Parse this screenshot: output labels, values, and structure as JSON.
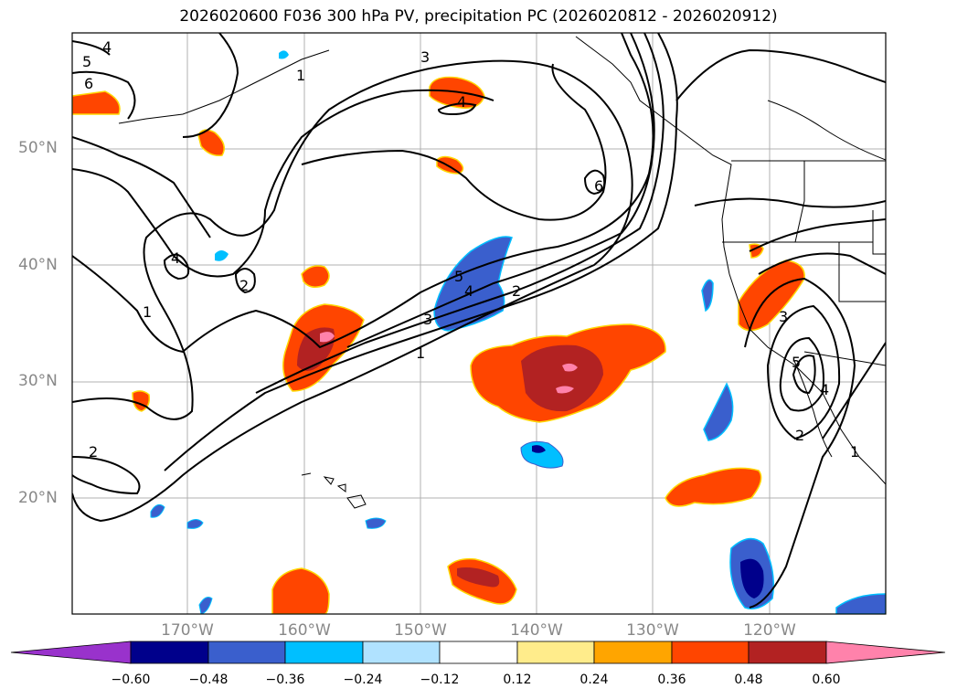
{
  "title": "2026020600 F036 300 hPa PV, precipitation PC (2026020812 - 2026020912)",
  "lat_labels": [
    "50°N",
    "40°N",
    "30°N",
    "20°N"
  ],
  "lon_labels": [
    "170°W",
    "160°W",
    "150°W",
    "140°W",
    "130°W",
    "120°W"
  ],
  "colorbar": {
    "ticks": [
      "−0.60",
      "−0.48",
      "−0.36",
      "−0.24",
      "−0.12",
      "0.12",
      "0.24",
      "0.36",
      "0.48",
      "0.60"
    ],
    "colors": [
      "#9932cc",
      "#00008b",
      "#3a5fcd",
      "#00bfff",
      "#b0e2ff",
      "#ffffff",
      "#ffec8b",
      "#ffa500",
      "#ff4500",
      "#b22222",
      "#ff82ab"
    ]
  },
  "contour_labels": [
    "4",
    "5",
    "6",
    "3",
    "4",
    "1",
    "6",
    "4",
    "2",
    "1",
    "5",
    "4",
    "3",
    "2",
    "1",
    "2",
    "3",
    "5",
    "4",
    "2",
    "1"
  ]
}
